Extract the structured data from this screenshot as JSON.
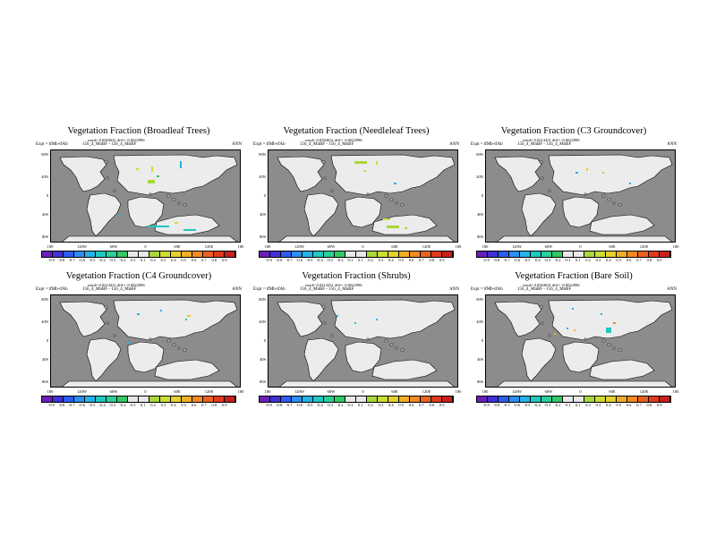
{
  "colors": {
    "ocean": "#8c8c8c",
    "land": "#ececec",
    "colorbar": [
      "#6a1fb8",
      "#4030d8",
      "#2d5cf0",
      "#2b8ef2",
      "#22b4e6",
      "#20c8c2",
      "#2ad09a",
      "#33c866",
      "#e8e8e8",
      "#e8e8e8",
      "#a8d83a",
      "#cddc36",
      "#e6d02e",
      "#f2ae28",
      "#f08a24",
      "#ea6220",
      "#e03a1e",
      "#c8201c"
    ]
  },
  "colorbar_labels": [
    "-0.9",
    "-0.8",
    "-0.7",
    "-0.6",
    "-0.5",
    "-0.4",
    "-0.3",
    "-0.2",
    "-0.1",
    "0.1",
    "0.2",
    "0.3",
    "0.4",
    "0.5",
    "0.6",
    "0.7",
    "0.8",
    "0.9"
  ],
  "lon_labels": [
    "180",
    "120W",
    "60W",
    "0",
    "60E",
    "120E",
    "180"
  ],
  "lat_labels": [
    "80N",
    "40N",
    "0",
    "40S",
    "80S"
  ],
  "panels": [
    {
      "title": "Vegetation Fraction (Broadleaf Trees)",
      "meta": "rmsd= 0.0584631 diff= -0.0022986",
      "expt": "Expt = tfMb-tfAb",
      "run": "156_4_MnBF - 156_4_MnBF",
      "season": "ANN"
    },
    {
      "title": "Vegetation Fraction (Needleleaf Trees)",
      "meta": "rmsd= 0.0584631 diff= -0.0022986",
      "expt": "Expt = tfMb-tfAb",
      "run": "156_4_MnBF - 156_4_MnBF",
      "season": "ANN"
    },
    {
      "title": "Vegetation Fraction (C3 Groundcover)",
      "meta": "rmsd= 0.0214431 diff= -0.0022986",
      "expt": "Expt = tfMb-tfAb",
      "run": "156_4_MnBF - 156_4_MnBF",
      "season": "ANN"
    },
    {
      "title": "Vegetation Fraction (C4 Groundcover)",
      "meta": "rmsd= 0.0214431 diff= -0.0022986",
      "expt": "Expt = tfMb-tfAb",
      "run": "156_4_MnBF - 156_4_MnBF",
      "season": "ANN"
    },
    {
      "title": "Vegetation Fraction (Shrubs)",
      "meta": "rmsd= 0.0214431 diff= -0.0022986",
      "expt": "Expt = tfMb-tfAb",
      "run": "156_4_MnBF - 156_4_MnBF",
      "season": "ANN"
    },
    {
      "title": "Vegetation Fraction (Bare Soil)",
      "meta": "rmsd= 0.0584631 diff= -0.0022986",
      "expt": "Expt = tfMb-tfAb",
      "run": "156_4_MnBF - 156_4_MnBF",
      "season": "ANN"
    }
  ]
}
